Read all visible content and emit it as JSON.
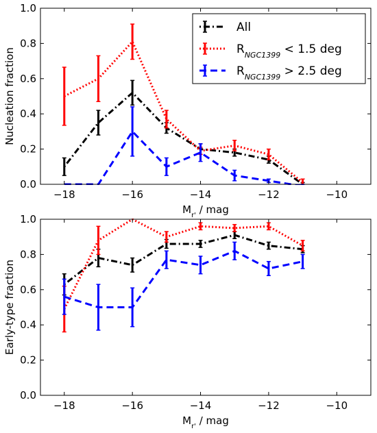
{
  "chart_data": [
    {
      "type": "line",
      "title": "",
      "xlabel": "M",
      "xlabel_sub": "r'",
      "xlabel_unit": " / mag",
      "ylabel": "Nucleation fraction",
      "xlim": [
        -18.7,
        -9.0
      ],
      "ylim": [
        0,
        1.0
      ],
      "xticks": [
        -18,
        -16,
        -14,
        -12,
        -10
      ],
      "xtick_labels": [
        "−18",
        "−16",
        "−14",
        "−12",
        "−10"
      ],
      "yticks": [
        0,
        0.2,
        0.4,
        0.6,
        0.8,
        1.0
      ],
      "ytick_labels": [
        "0.0",
        "0.2",
        "0.4",
        "0.6",
        "0.8",
        "1.0"
      ],
      "legend": {
        "placement": "top-right",
        "entries": [
          {
            "series": 0,
            "label": "All",
            "sub": "",
            "suffix": ""
          },
          {
            "series": 1,
            "label": "R",
            "sub": "NGC1399",
            "suffix": " < 1.5 deg"
          },
          {
            "series": 2,
            "label": "R",
            "sub": "NGC1399",
            "suffix": " > 2.5 deg"
          }
        ]
      },
      "series": [
        {
          "name": "All",
          "color": "#000000",
          "dash": "dashdot",
          "x": [
            -18,
            -17,
            -16,
            -15,
            -14,
            -13,
            -12,
            -11
          ],
          "y": [
            0.1,
            0.35,
            0.52,
            0.32,
            0.2,
            0.18,
            0.14,
            0.0
          ],
          "err": [
            0.05,
            0.07,
            0.07,
            0.03,
            0.03,
            0.02,
            0.02,
            0.01
          ]
        },
        {
          "name": "R NGC1399 < 1.5 deg",
          "color": "#ff0000",
          "dash": "dotted",
          "x": [
            -18,
            -17,
            -16,
            -15,
            -14,
            -13,
            -12,
            -11
          ],
          "y": [
            0.5,
            0.6,
            0.81,
            0.37,
            0.19,
            0.22,
            0.17,
            0.01
          ],
          "err": [
            0.165,
            0.13,
            0.1,
            0.05,
            0.02,
            0.03,
            0.03,
            0.02
          ]
        },
        {
          "name": "R NGC1399 > 2.5 deg",
          "color": "#0000ff",
          "dash": "dashed",
          "x": [
            -18,
            -17,
            -16,
            -15,
            -14,
            -13,
            -12,
            -11
          ],
          "y": [
            0.0,
            0.0,
            0.3,
            0.1,
            0.18,
            0.05,
            0.02,
            -0.01
          ],
          "err": [
            0.0,
            0.0,
            0.14,
            0.05,
            0.05,
            0.03,
            0.01,
            0.01
          ]
        }
      ]
    },
    {
      "type": "line",
      "title": "",
      "xlabel": "M",
      "xlabel_sub": "r'",
      "xlabel_unit": " / mag",
      "ylabel": "Early-type fraction",
      "xlim": [
        -18.7,
        -9.0
      ],
      "ylim": [
        0,
        1.0
      ],
      "xticks": [
        -18,
        -16,
        -14,
        -12,
        -10
      ],
      "xtick_labels": [
        "−18",
        "−16",
        "−14",
        "−12",
        "−10"
      ],
      "yticks": [
        0,
        0.2,
        0.4,
        0.6,
        0.8,
        1.0
      ],
      "ytick_labels": [
        "0.0",
        "0.2",
        "0.4",
        "0.6",
        "0.8",
        "1.0"
      ],
      "series": [
        {
          "name": "All",
          "color": "#000000",
          "dash": "dashdot",
          "x": [
            -18,
            -17,
            -16,
            -15,
            -14,
            -13,
            -12,
            -11
          ],
          "y": [
            0.63,
            0.78,
            0.74,
            0.86,
            0.86,
            0.91,
            0.85,
            0.83
          ],
          "err": [
            0.06,
            0.05,
            0.04,
            0.025,
            0.02,
            0.02,
            0.02,
            0.02
          ]
        },
        {
          "name": "R NGC1399 < 1.5 deg",
          "color": "#ff0000",
          "dash": "dotted",
          "x": [
            -18,
            -17,
            -16,
            -15,
            -14,
            -13,
            -12,
            -11
          ],
          "y": [
            0.49,
            0.88,
            1.0,
            0.9,
            0.96,
            0.95,
            0.96,
            0.85
          ],
          "err": [
            0.13,
            0.08,
            0.0,
            0.03,
            0.02,
            0.02,
            0.02,
            0.03
          ]
        },
        {
          "name": "R NGC1399 > 2.5 deg",
          "color": "#0000ff",
          "dash": "dashed",
          "x": [
            -18,
            -17,
            -16,
            -15,
            -14,
            -13,
            -12,
            -11
          ],
          "y": [
            0.56,
            0.5,
            0.5,
            0.77,
            0.74,
            0.82,
            0.72,
            0.76
          ],
          "err": [
            0.1,
            0.13,
            0.11,
            0.05,
            0.05,
            0.05,
            0.04,
            0.04
          ]
        }
      ]
    }
  ]
}
